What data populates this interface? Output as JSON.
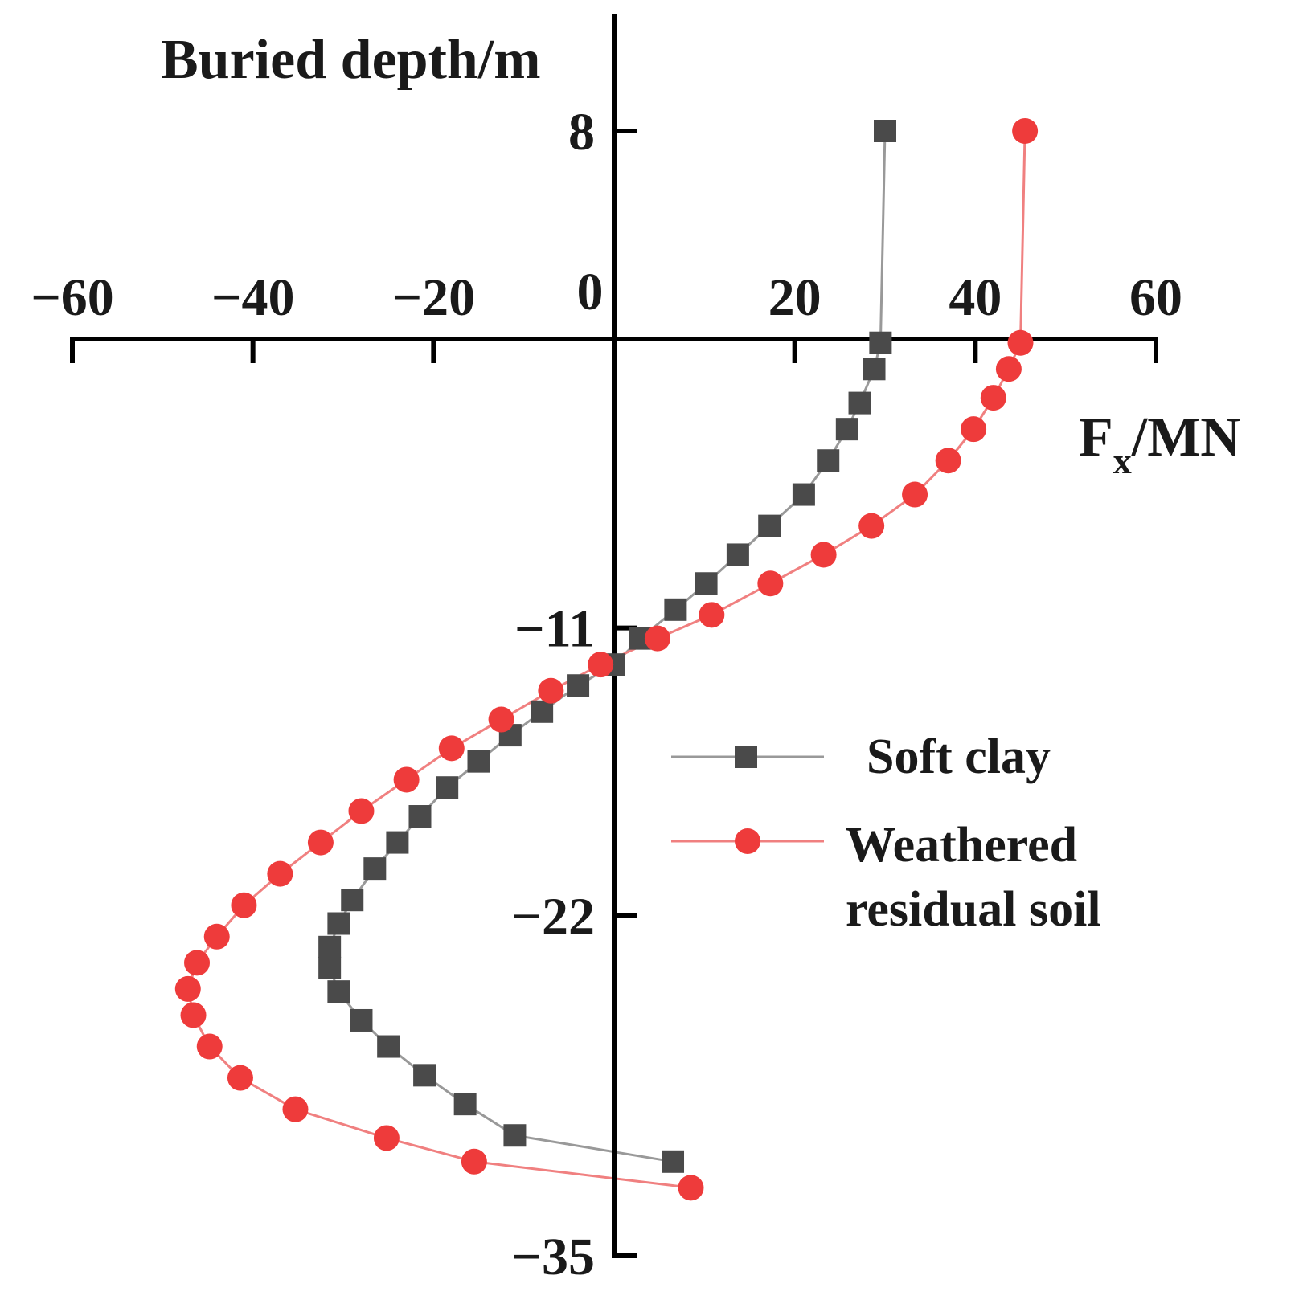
{
  "chart_data": {
    "type": "line",
    "xlabel": "F",
    "xlabel_sub": "x",
    "xlabel_unit": "/MN",
    "ylabel": "Buried depth/m",
    "xlim": [
      -60,
      60
    ],
    "ylim": [
      -35,
      8
    ],
    "x_ticks": [
      -60,
      -40,
      -20,
      0,
      20,
      40,
      60
    ],
    "x_tick_labels": [
      "−60",
      "−40",
      "−20",
      "0",
      "20",
      "40",
      "60"
    ],
    "y_ticks": [
      8,
      -11,
      -22,
      -35
    ],
    "y_tick_labels": [
      "8",
      "−11",
      "−22",
      "−35"
    ],
    "grid": false,
    "legend_position": "right",
    "series": [
      {
        "name": "Soft clay",
        "marker": "square",
        "color": "#4a4a4a",
        "line_color": "#999999",
        "points": [
          [
            30,
            8
          ],
          [
            29.5,
            -0.1
          ],
          [
            28.8,
            -1.1
          ],
          [
            27.2,
            -2.4
          ],
          [
            25.8,
            -3.4
          ],
          [
            23.7,
            -4.6
          ],
          [
            21,
            -5.9
          ],
          [
            17.2,
            -7.1
          ],
          [
            13.7,
            -8.2
          ],
          [
            10.2,
            -9.3
          ],
          [
            6.8,
            -10.3
          ],
          [
            2.9,
            -11.4
          ],
          [
            0,
            -12.4
          ],
          [
            -4,
            -13.2
          ],
          [
            -8,
            -14.2
          ],
          [
            -11.5,
            -15.1
          ],
          [
            -15,
            -16.1
          ],
          [
            -18.5,
            -17.1
          ],
          [
            -21.5,
            -18.2
          ],
          [
            -24,
            -19.2
          ],
          [
            -26.5,
            -20.2
          ],
          [
            -29,
            -21.4
          ],
          [
            -30.5,
            -22.3
          ],
          [
            -31.5,
            -23.2
          ],
          [
            -31.5,
            -24.0
          ],
          [
            -30.5,
            -24.9
          ],
          [
            -28,
            -26.0
          ],
          [
            -25,
            -27.0
          ],
          [
            -21,
            -28.1
          ],
          [
            -16.5,
            -29.2
          ],
          [
            -11,
            -30.4
          ],
          [
            6.5,
            -31.4
          ]
        ]
      },
      {
        "name": "Weathered residual soil",
        "marker": "circle",
        "color": "#ee3b3b",
        "line_color": "#f08080",
        "points": [
          [
            45.5,
            8
          ],
          [
            45,
            -0.1
          ],
          [
            43.7,
            -1.1
          ],
          [
            42,
            -2.2
          ],
          [
            39.8,
            -3.4
          ],
          [
            37,
            -4.6
          ],
          [
            33.3,
            -5.9
          ],
          [
            28.5,
            -7.1
          ],
          [
            23.2,
            -8.2
          ],
          [
            17.3,
            -9.3
          ],
          [
            10.8,
            -10.5
          ],
          [
            4.8,
            -11.4
          ],
          [
            -1.5,
            -12.4
          ],
          [
            -7,
            -13.4
          ],
          [
            -12.5,
            -14.5
          ],
          [
            -18,
            -15.6
          ],
          [
            -23,
            -16.8
          ],
          [
            -28,
            -18.0
          ],
          [
            -32.5,
            -19.2
          ],
          [
            -37,
            -20.4
          ],
          [
            -41,
            -21.6
          ],
          [
            -44,
            -22.8
          ],
          [
            -46.2,
            -23.8
          ],
          [
            -47.2,
            -24.8
          ],
          [
            -46.6,
            -25.8
          ],
          [
            -44.8,
            -27.0
          ],
          [
            -41.4,
            -28.2
          ],
          [
            -35.3,
            -29.4
          ],
          [
            -25.2,
            -30.5
          ],
          [
            -15.5,
            -31.4
          ],
          [
            8.5,
            -32.4
          ]
        ]
      }
    ]
  }
}
